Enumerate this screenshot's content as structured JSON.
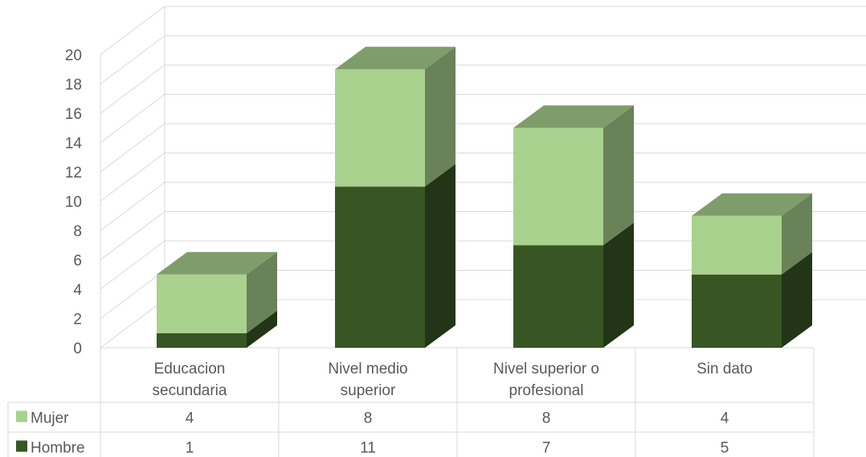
{
  "chart_data": {
    "type": "bar",
    "stacked": true,
    "style": "3d-column",
    "title": "",
    "xlabel": "",
    "ylabel": "",
    "ylim": [
      0,
      20
    ],
    "yticks": [
      0,
      2,
      4,
      6,
      8,
      10,
      12,
      14,
      16,
      18,
      20
    ],
    "grid": true,
    "categories": [
      [
        "Educacion",
        "secundaria"
      ],
      [
        "Nivel medio",
        "superior"
      ],
      [
        "Nivel superior o",
        "profesional"
      ],
      [
        "Sin dato"
      ]
    ],
    "series": [
      {
        "name": "Hombre",
        "values": [
          1,
          11,
          7,
          5
        ],
        "color": "#375623"
      },
      {
        "name": "Mujer",
        "values": [
          4,
          8,
          8,
          4
        ],
        "color": "#a9d18e"
      }
    ],
    "data_table": {
      "row_order": [
        "Mujer",
        "Hombre"
      ]
    }
  }
}
